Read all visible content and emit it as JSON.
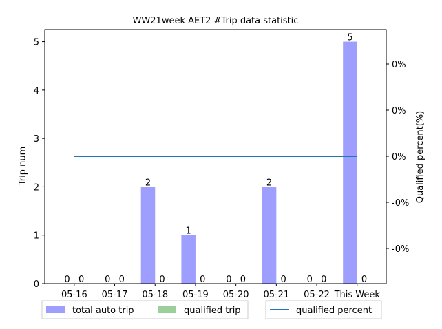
{
  "chart_data": {
    "type": "bar",
    "title": "WW21week AET2 #Trip data statistic",
    "ylabel": "Trip num",
    "y2label": "Qualified percent(%)",
    "categories": [
      "05-16",
      "05-17",
      "05-18",
      "05-19",
      "05-20",
      "05-21",
      "05-22",
      "This Week"
    ],
    "ylim": [
      0,
      5.25
    ],
    "yticks": [
      0,
      1,
      2,
      3,
      4,
      5
    ],
    "y2ticks": [
      "-0%",
      "-0%",
      "0%",
      "0%",
      "0%"
    ],
    "series": [
      {
        "name": "total auto trip",
        "kind": "bar",
        "color": "#9e9eff",
        "values": [
          0,
          0,
          2,
          1,
          0,
          2,
          0,
          5
        ]
      },
      {
        "name": "qualified trip",
        "kind": "bar",
        "color": "#9bcf9b",
        "values": [
          0,
          0,
          0,
          0,
          0,
          0,
          0,
          0
        ]
      },
      {
        "name": "qualified percent",
        "kind": "line",
        "axis": "right",
        "color": "#1f77b4",
        "values": [
          0,
          0,
          0,
          0,
          0,
          0,
          0,
          0
        ]
      }
    ],
    "legend": {
      "position": "bottom",
      "items": [
        "total auto trip",
        "qualified trip",
        "qualified percent"
      ]
    }
  }
}
